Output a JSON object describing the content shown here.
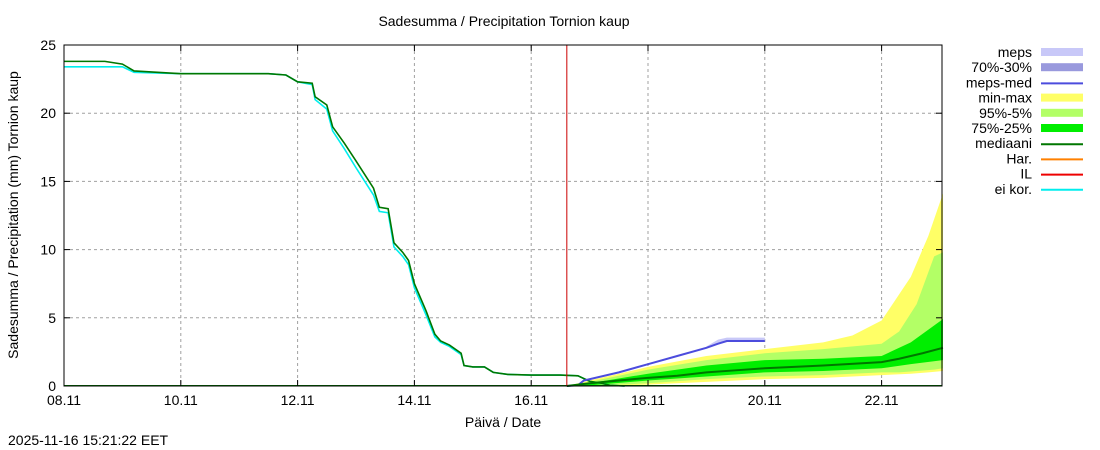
{
  "chart_data": {
    "type": "area",
    "title": "Sadesumma / Precipitation  Tornion kaup",
    "xlabel": "Päivä / Date",
    "ylabel": "Sadesumma / Precipitation (mm)  Tornion kaup",
    "timestamp": "2025-11-16 15:21:22 EET",
    "x_unit": "days since 08.11",
    "xlim_dates": [
      "08.11",
      "23.11"
    ],
    "ylim": [
      0,
      25
    ],
    "yticks": [
      0,
      5,
      10,
      15,
      20,
      25
    ],
    "xtick_labels": [
      "08.11",
      "10.11",
      "12.11",
      "14.11",
      "16.11",
      "18.11",
      "20.11",
      "22.11"
    ],
    "grid": true,
    "legend_position": "right",
    "forecast_start": "16.11 15:00",
    "colors": {
      "meps": "#c8c8f8",
      "meps7030": "#9999dd",
      "mepsmed": "#4c4cdd",
      "minmax": "#ffff66",
      "p955": "#b3ff66",
      "p7525": "#00ee00",
      "mediaani": "#007700",
      "har": "#ff8000",
      "il": "#ee0000",
      "eikor": "#00eeee",
      "nowline": "#cc0000"
    },
    "legend": [
      {
        "label": "meps",
        "key": "meps",
        "kind": "band"
      },
      {
        "label": "70%-30%",
        "key": "meps7030",
        "kind": "band"
      },
      {
        "label": "meps-med",
        "key": "mepsmed",
        "kind": "line"
      },
      {
        "label": "min-max",
        "key": "minmax",
        "kind": "band"
      },
      {
        "label": "95%-5%",
        "key": "p955",
        "kind": "band"
      },
      {
        "label": "75%-25%",
        "key": "p7525",
        "kind": "band"
      },
      {
        "label": "mediaani",
        "key": "mediaani",
        "kind": "line"
      },
      {
        "label": "Har.",
        "key": "har",
        "kind": "line"
      },
      {
        "label": "IL",
        "key": "il",
        "kind": "line"
      },
      {
        "label": "ei kor.",
        "key": "eikor",
        "kind": "line"
      }
    ],
    "series": {
      "observed": [
        [
          0,
          23.8
        ],
        [
          0.7,
          23.8
        ],
        [
          1.0,
          23.6
        ],
        [
          1.2,
          23.1
        ],
        [
          2.0,
          22.9
        ],
        [
          3.5,
          22.9
        ],
        [
          3.8,
          22.8
        ],
        [
          4.0,
          22.3
        ],
        [
          4.25,
          22.2
        ],
        [
          4.3,
          21.2
        ],
        [
          4.5,
          20.6
        ],
        [
          4.6,
          19
        ],
        [
          4.8,
          17.8
        ],
        [
          5.0,
          16.5
        ],
        [
          5.3,
          14.5
        ],
        [
          5.4,
          13.1
        ],
        [
          5.55,
          13.0
        ],
        [
          5.65,
          10.5
        ],
        [
          5.8,
          9.8
        ],
        [
          5.9,
          9.2
        ],
        [
          6.0,
          7.5
        ],
        [
          6.2,
          5.5
        ],
        [
          6.35,
          3.8
        ],
        [
          6.45,
          3.3
        ],
        [
          6.6,
          3.0
        ],
        [
          6.8,
          2.4
        ],
        [
          6.85,
          1.5
        ],
        [
          7.0,
          1.4
        ],
        [
          7.2,
          1.4
        ],
        [
          7.35,
          1.0
        ],
        [
          7.6,
          0.85
        ],
        [
          8.0,
          0.8
        ],
        [
          8.5,
          0.8
        ],
        [
          8.8,
          0.75
        ],
        [
          9.0,
          0.35
        ],
        [
          9.2,
          0.2
        ],
        [
          9.35,
          0.05
        ],
        [
          9.6,
          0
        ],
        [
          8.61,
          0
        ]
      ],
      "eikor": [
        [
          0,
          23.4
        ],
        [
          1.0,
          23.4
        ],
        [
          1.2,
          23.0
        ],
        [
          2.0,
          22.9
        ],
        [
          3.5,
          22.9
        ],
        [
          3.8,
          22.8
        ],
        [
          4.0,
          22.3
        ],
        [
          4.25,
          22.1
        ],
        [
          4.3,
          21.0
        ],
        [
          4.5,
          20.3
        ],
        [
          4.6,
          18.7
        ],
        [
          4.8,
          17.4
        ],
        [
          5.0,
          16.0
        ],
        [
          5.3,
          14.0
        ],
        [
          5.4,
          12.8
        ],
        [
          5.55,
          12.7
        ],
        [
          5.65,
          10.2
        ],
        [
          5.8,
          9.5
        ],
        [
          5.9,
          8.9
        ],
        [
          6.0,
          7.2
        ],
        [
          6.2,
          5.2
        ],
        [
          6.35,
          3.6
        ],
        [
          6.45,
          3.2
        ],
        [
          6.6,
          2.9
        ],
        [
          6.8,
          2.3
        ],
        [
          6.85,
          1.5
        ],
        [
          7.0,
          1.4
        ],
        [
          7.2,
          1.4
        ],
        [
          7.35,
          1.0
        ],
        [
          7.6,
          0.85
        ],
        [
          8.0,
          0.8
        ],
        [
          8.5,
          0.8
        ],
        [
          8.8,
          0.75
        ],
        [
          9.0,
          0.35
        ],
        [
          9.2,
          0.2
        ],
        [
          9.35,
          0.05
        ],
        [
          9.6,
          0
        ]
      ],
      "mepsmed": [
        [
          8.61,
          0
        ],
        [
          8.8,
          0.05
        ],
        [
          8.9,
          0.4
        ],
        [
          9.5,
          1.0
        ],
        [
          10.0,
          1.6
        ],
        [
          10.5,
          2.2
        ],
        [
          11.0,
          2.8
        ],
        [
          11.2,
          3.1
        ],
        [
          11.35,
          3.3
        ],
        [
          12.0,
          3.3
        ]
      ],
      "meps_band": [
        [
          11.0,
          2.8,
          2.9
        ],
        [
          11.2,
          3.1,
          3.4
        ],
        [
          11.35,
          3.3,
          3.55
        ],
        [
          12.0,
          3.3,
          3.55
        ]
      ],
      "minmax": [
        [
          8.61,
          0,
          0
        ],
        [
          9.0,
          0,
          0.4
        ],
        [
          10.0,
          0.1,
          1.4
        ],
        [
          11.0,
          0.3,
          2.2
        ],
        [
          12.0,
          0.5,
          2.7
        ],
        [
          13.0,
          0.6,
          3.2
        ],
        [
          13.5,
          0.7,
          3.7
        ],
        [
          14.0,
          0.8,
          4.8
        ],
        [
          14.5,
          0.9,
          8.0
        ],
        [
          14.8,
          1.0,
          11.0
        ],
        [
          15.05,
          1.1,
          14.1
        ]
      ],
      "p955": [
        [
          8.61,
          0,
          0
        ],
        [
          9.0,
          0,
          0.3
        ],
        [
          10.0,
          0.2,
          1.2
        ],
        [
          11.0,
          0.5,
          1.9
        ],
        [
          12.0,
          0.7,
          2.4
        ],
        [
          13.0,
          0.8,
          2.7
        ],
        [
          14.0,
          1.0,
          3.1
        ],
        [
          14.3,
          1.0,
          4.0
        ],
        [
          14.6,
          1.1,
          6.0
        ],
        [
          14.9,
          1.2,
          9.5
        ],
        [
          15.05,
          1.3,
          9.8
        ]
      ],
      "p7525": [
        [
          8.61,
          0,
          0
        ],
        [
          9.0,
          0.05,
          0.2
        ],
        [
          10.0,
          0.4,
          0.9
        ],
        [
          11.0,
          0.7,
          1.5
        ],
        [
          12.0,
          1.0,
          1.9
        ],
        [
          13.0,
          1.1,
          2.0
        ],
        [
          14.0,
          1.3,
          2.2
        ],
        [
          14.5,
          1.6,
          3.2
        ],
        [
          15.05,
          1.9,
          4.9
        ]
      ],
      "mediaani": [
        [
          8.61,
          0
        ],
        [
          9.0,
          0.2
        ],
        [
          10.0,
          0.6
        ],
        [
          10.5,
          0.75
        ],
        [
          11.0,
          1.0
        ],
        [
          11.5,
          1.15
        ],
        [
          12.0,
          1.3
        ],
        [
          13.0,
          1.5
        ],
        [
          14.0,
          1.75
        ],
        [
          14.3,
          2.0
        ],
        [
          14.7,
          2.4
        ],
        [
          15.05,
          2.8
        ]
      ]
    }
  }
}
